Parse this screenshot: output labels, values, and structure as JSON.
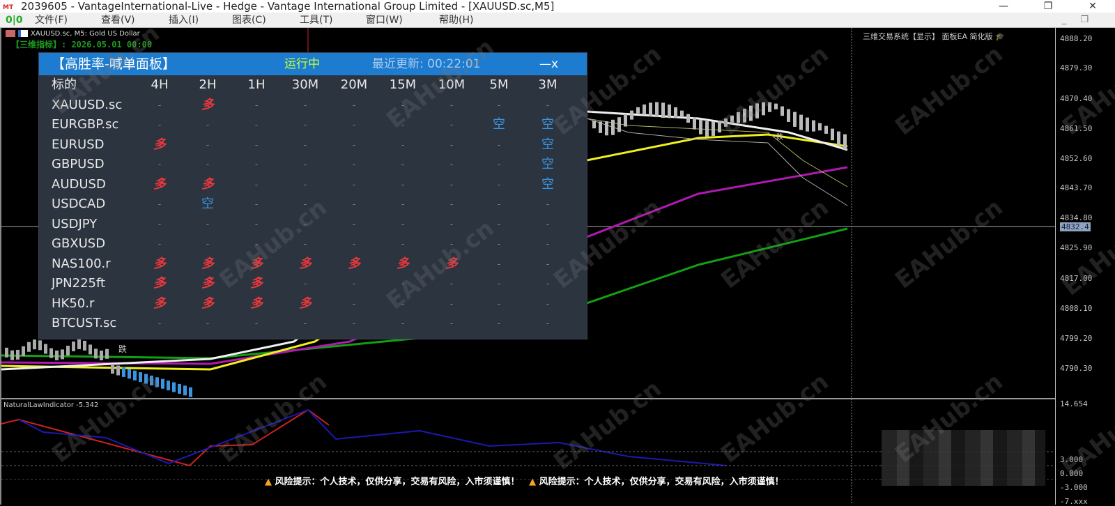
{
  "window": {
    "title": "2039605 - VantageInternational-Live - Hedge - Vantage International Group Limited - [XAUUSD.sc,M5]",
    "logo": "MT",
    "minimize": "—",
    "restore": "❐",
    "close": "✕"
  },
  "menu": {
    "items": [
      "文件(F)",
      "查看(V)",
      "插入(I)",
      "图表(C)",
      "工具(T)",
      "窗口(W)",
      "帮助(H)"
    ],
    "mdi_min": "_",
    "mdi_restore": "❐"
  },
  "chart": {
    "symbol_line": "XAUUSD.sc, M5:  Gold US Dollar",
    "date_line": "【三维指标】: 2026.05.01 00:00",
    "ea_title": "三维交易系统【显示】 面板EA 简化版",
    "ea_cap_icon": "graduation-cap-icon",
    "down_label": "跌",
    "price_ticks": [
      "4888.20",
      "4879.30",
      "4870.40",
      "4861.50",
      "4852.60",
      "4843.70",
      "4834.80",
      "4825.90",
      "4817.00",
      "4808.10",
      "4799.20",
      "4790.30"
    ],
    "current_price": "4832.4",
    "indicator_label": "NaturalLawIndicator -5.342",
    "indicator_ticks": [
      "14.654",
      "3.000",
      "0.000",
      "-3.000",
      "-7.xxx"
    ]
  },
  "panel": {
    "title": "【高胜率-喊单面板】",
    "status": "运行中",
    "updated": "最近更新: 00:22:01",
    "close": "—x",
    "columns": [
      "标的",
      "4H",
      "2H",
      "1H",
      "30M",
      "20M",
      "15M",
      "10M",
      "5M",
      "3M"
    ],
    "rows": [
      {
        "symbol": "XAUUSD.sc",
        "signals": [
          "-",
          "多",
          "-",
          "-",
          "-",
          "-",
          "-",
          "-",
          "-"
        ]
      },
      {
        "symbol": "EURGBP.sc",
        "signals": [
          "-",
          "-",
          "-",
          "-",
          "-",
          "-",
          "-",
          "空",
          "空"
        ]
      },
      {
        "symbol": "EURUSD",
        "signals": [
          "多",
          "-",
          "-",
          "-",
          "-",
          "-",
          "-",
          "-",
          "空"
        ]
      },
      {
        "symbol": "GBPUSD",
        "signals": [
          "-",
          "-",
          "-",
          "-",
          "-",
          "-",
          "-",
          "-",
          "空"
        ]
      },
      {
        "symbol": "AUDUSD",
        "signals": [
          "多",
          "多",
          "-",
          "-",
          "-",
          "-",
          "-",
          "-",
          "空"
        ]
      },
      {
        "symbol": "USDCAD",
        "signals": [
          "-",
          "空",
          "-",
          "-",
          "-",
          "-",
          "-",
          "-",
          "-"
        ]
      },
      {
        "symbol": "USDJPY",
        "signals": [
          "-",
          "-",
          "-",
          "-",
          "-",
          "-",
          "-",
          "-",
          "-"
        ]
      },
      {
        "symbol": "GBXUSD",
        "signals": [
          "-",
          "-",
          "-",
          "-",
          "-",
          "-",
          "-",
          "-",
          "-"
        ]
      },
      {
        "symbol": "NAS100.r",
        "signals": [
          "多",
          "多",
          "多",
          "多",
          "多",
          "多",
          "多",
          "-",
          "-"
        ]
      },
      {
        "symbol": "JPN225ft",
        "signals": [
          "多",
          "多",
          "多",
          "-",
          "-",
          "-",
          "-",
          "-",
          "-"
        ]
      },
      {
        "symbol": "HK50.r",
        "signals": [
          "多",
          "多",
          "多",
          "多",
          "-",
          "-",
          "-",
          "-",
          "-"
        ]
      },
      {
        "symbol": "BTCUST.sc",
        "signals": [
          "-",
          "-",
          "-",
          "-",
          "-",
          "-",
          "-",
          "-",
          "-"
        ]
      }
    ],
    "colors": {
      "long": "#e8383c",
      "short": "#3a95e0",
      "header": "#1d7ccf",
      "bg": "#2c3440"
    }
  },
  "warning": {
    "icon": "warning-icon",
    "text": "风险提示：个人技术，仅供分享，交易有风险，入市须谨慎！"
  },
  "watermark": "EAHub.cn"
}
